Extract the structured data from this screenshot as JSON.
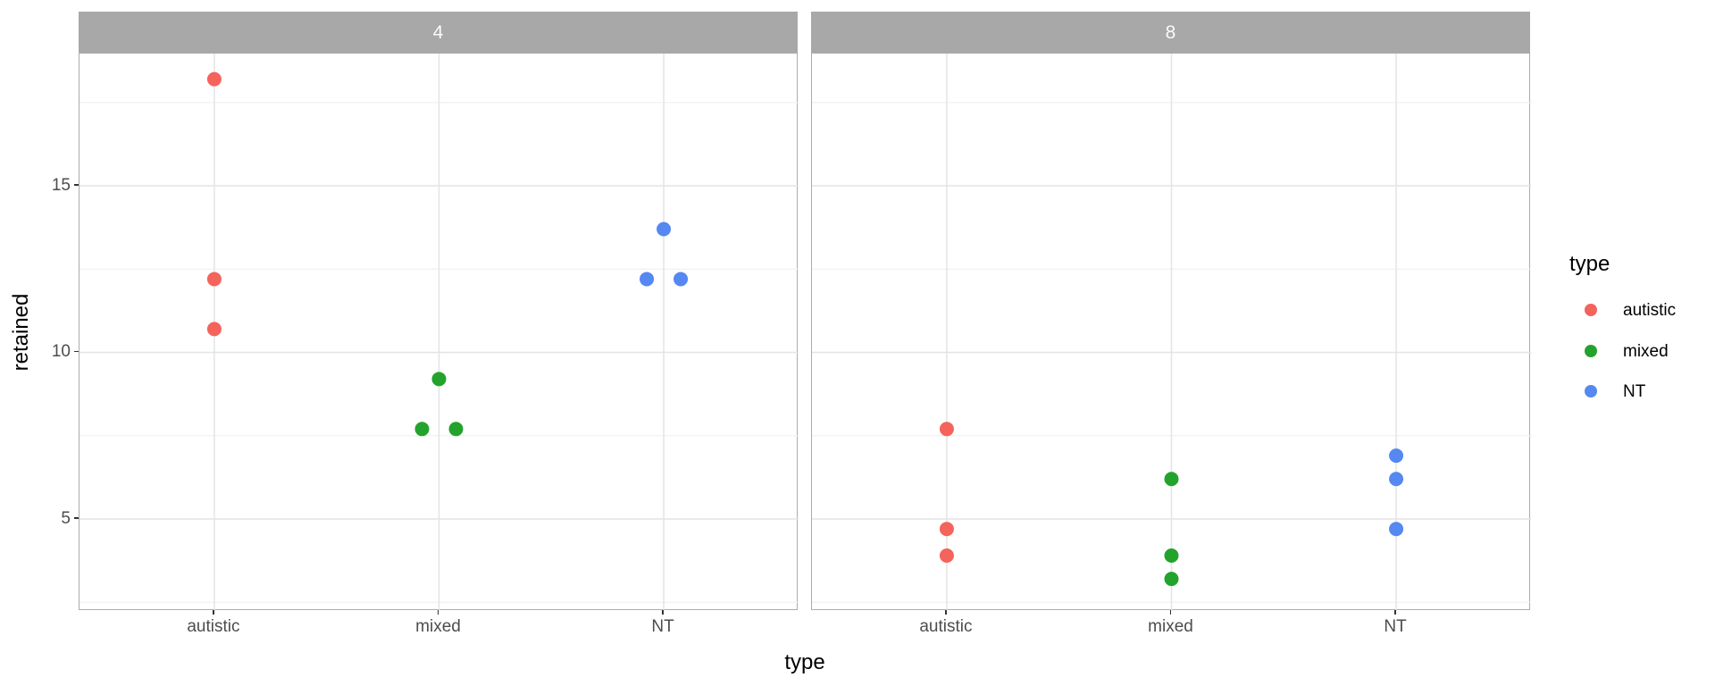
{
  "colors": {
    "autistic": "#F4635C",
    "mixed": "#23A32C",
    "NT": "#5588F0",
    "strip_fill": "#A8A8A8",
    "strip_text": "#FAFAFA",
    "grid_major": "#E4E4E4",
    "grid_minor": "#F1F1F1",
    "panel_border": "#ACACAC",
    "tick_mark": "#333333",
    "axis_text": "#4D4D4D",
    "title_text": "#000000"
  },
  "chart_data": {
    "type": "scatter",
    "facet_variable_values": [
      "4",
      "8"
    ],
    "categories": [
      "autistic",
      "mixed",
      "NT"
    ],
    "xlabel": "type",
    "ylabel": "retained",
    "yticks": [
      5,
      10,
      15
    ],
    "yticks_minor": [
      2.5,
      7.5,
      12.5,
      17.5
    ],
    "ylim": [
      2.2,
      19.0
    ],
    "grid": "horizontal major+minor, vertical major at each category",
    "legend": {
      "title": "type",
      "position": "right",
      "entries": [
        {
          "label": "autistic",
          "color": "#F4635C"
        },
        {
          "label": "mixed",
          "color": "#23A32C"
        },
        {
          "label": "NT",
          "color": "#5588F0"
        }
      ]
    },
    "facets": [
      {
        "label": "4",
        "points": [
          {
            "category": "autistic",
            "series": "autistic",
            "value": 18.2,
            "dx": 0
          },
          {
            "category": "autistic",
            "series": "autistic",
            "value": 12.2,
            "dx": 0
          },
          {
            "category": "autistic",
            "series": "autistic",
            "value": 10.7,
            "dx": 0
          },
          {
            "category": "mixed",
            "series": "mixed",
            "value": 9.2,
            "dx": 0
          },
          {
            "category": "mixed",
            "series": "mixed",
            "value": 7.7,
            "dx": -19
          },
          {
            "category": "mixed",
            "series": "mixed",
            "value": 7.7,
            "dx": 19
          },
          {
            "category": "NT",
            "series": "NT",
            "value": 13.7,
            "dx": 0
          },
          {
            "category": "NT",
            "series": "NT",
            "value": 12.2,
            "dx": -19
          },
          {
            "category": "NT",
            "series": "NT",
            "value": 12.2,
            "dx": 19
          }
        ]
      },
      {
        "label": "8",
        "points": [
          {
            "category": "autistic",
            "series": "autistic",
            "value": 7.7,
            "dx": 0
          },
          {
            "category": "autistic",
            "series": "autistic",
            "value": 4.7,
            "dx": 0
          },
          {
            "category": "autistic",
            "series": "autistic",
            "value": 3.9,
            "dx": 0
          },
          {
            "category": "mixed",
            "series": "mixed",
            "value": 6.2,
            "dx": 0
          },
          {
            "category": "mixed",
            "series": "mixed",
            "value": 3.9,
            "dx": 0
          },
          {
            "category": "mixed",
            "series": "mixed",
            "value": 3.2,
            "dx": 0
          },
          {
            "category": "NT",
            "series": "NT",
            "value": 6.9,
            "dx": 0
          },
          {
            "category": "NT",
            "series": "NT",
            "value": 6.2,
            "dx": 0
          },
          {
            "category": "NT",
            "series": "NT",
            "value": 4.7,
            "dx": 0
          }
        ]
      }
    ]
  }
}
